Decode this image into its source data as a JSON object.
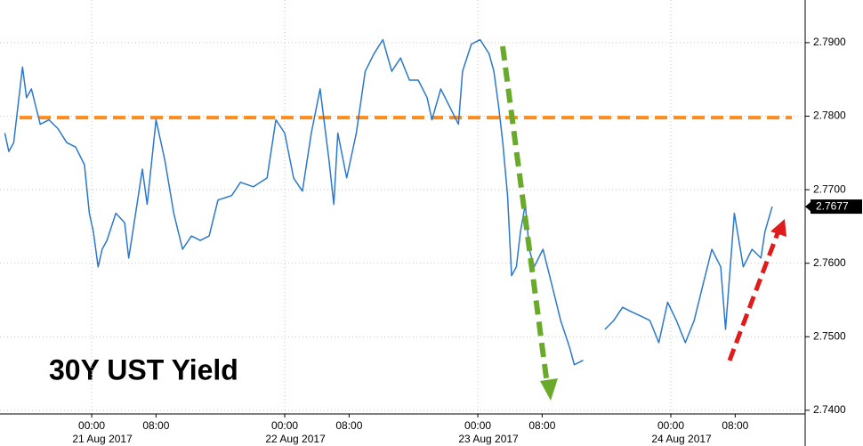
{
  "chart_data": {
    "type": "line",
    "title": "30Y UST Yield",
    "x": [
      -10.8,
      -10.3,
      -9.7,
      -8.6,
      -8.1,
      -7.5,
      -6.4,
      -5.3,
      -4.2,
      -3.1,
      -2.0,
      -0.9,
      -0.3,
      0.2,
      0.8,
      1.3,
      1.9,
      3.0,
      4.1,
      4.6,
      5.8,
      6.3,
      6.9,
      8.0,
      9.1,
      10.2,
      11.3,
      12.4,
      13.5,
      14.6,
      15.7,
      17.4,
      18.5,
      20.1,
      21.8,
      22.3,
      22.9,
      24.0,
      25.1,
      26.2,
      27.3,
      28.4,
      29.5,
      30.1,
      30.6,
      31.7,
      32.9,
      34.0,
      35.1,
      36.2,
      37.3,
      38.4,
      39.5,
      40.6,
      41.7,
      42.3,
      43.4,
      44.5,
      45.6,
      46.1,
      47.2,
      48.3,
      49.4,
      50.0,
      50.6,
      51.1,
      51.7,
      52.2,
      52.8,
      53.3,
      53.9,
      54.4,
      55.0,
      56.1,
      57.2,
      58.3,
      59.4,
      60.0,
      61.1,
      62.3,
      63.8,
      64.9,
      66.0,
      67.1,
      68.3,
      69.4,
      70.5,
      71.6,
      72.7,
      73.8,
      74.9,
      76.0,
      77.1,
      78.2,
      78.8,
      79.9,
      81.0,
      82.1,
      83.2,
      83.7,
      84.6
    ],
    "series": [
      {
        "name": "30Y UST Yield",
        "color": "#2a78d0",
        "values": [
          2.7777,
          2.7752,
          2.7764,
          2.7867,
          2.7825,
          2.7837,
          2.7789,
          2.7795,
          2.7783,
          2.7764,
          2.7758,
          2.7734,
          2.7668,
          2.7643,
          2.7595,
          2.7619,
          2.7631,
          2.7668,
          2.7655,
          2.7607,
          2.7692,
          2.7728,
          2.768,
          2.7795,
          2.774,
          2.7668,
          2.7619,
          2.7637,
          2.7631,
          2.7637,
          2.7686,
          2.7692,
          2.771,
          2.7704,
          2.7716,
          2.7752,
          2.7795,
          2.7777,
          2.7716,
          2.7698,
          2.7777,
          2.7837,
          2.774,
          2.768,
          2.7777,
          2.7716,
          2.7777,
          2.7861,
          2.7885,
          2.7904,
          2.7861,
          2.7879,
          2.7849,
          2.7849,
          2.7825,
          2.7795,
          2.7837,
          2.7813,
          2.7789,
          2.7861,
          2.7898,
          2.7904,
          2.7885,
          2.7861,
          2.7813,
          2.7764,
          2.7692,
          2.7583,
          2.7595,
          2.7643,
          2.768,
          2.7619,
          2.7595,
          2.7619,
          2.7571,
          2.7522,
          2.7486,
          2.7462,
          2.7468,
          null,
          2.751,
          2.7522,
          2.754,
          2.7534,
          2.7528,
          2.7522,
          2.7492,
          2.7547,
          2.7522,
          2.7492,
          2.7522,
          2.7571,
          2.7619,
          2.7595,
          2.751,
          2.7668,
          2.7595,
          2.7619,
          2.7607,
          2.7643,
          2.7677
        ]
      }
    ],
    "xlim": [
      -11.4,
      88.7
    ],
    "xticks": [
      {
        "value": 0,
        "label": "00:00"
      },
      {
        "value": 8,
        "label": "08:00"
      },
      {
        "value": 24,
        "label": "00:00"
      },
      {
        "value": 32,
        "label": "08:00"
      },
      {
        "value": 48,
        "label": "00:00"
      },
      {
        "value": 56,
        "label": "08:00"
      },
      {
        "value": 72,
        "label": "00:00"
      },
      {
        "value": 80,
        "label": "08:00"
      }
    ],
    "date_labels": [
      {
        "value": 0,
        "label": "21 Aug 2017"
      },
      {
        "value": 24,
        "label": "22 Aug 2017"
      },
      {
        "value": 48,
        "label": "23 Aug 2017"
      },
      {
        "value": 72,
        "label": "24 Aug 2017"
      }
    ],
    "ylim": [
      2.7395,
      2.7958
    ],
    "yticks": [
      {
        "value": 2.74,
        "label": "2.7400"
      },
      {
        "value": 2.75,
        "label": "2.7500"
      },
      {
        "value": 2.76,
        "label": "2.7600"
      },
      {
        "value": 2.77,
        "label": "2.7700"
      },
      {
        "value": 2.78,
        "label": "2.7800"
      },
      {
        "value": 2.79,
        "label": "2.7900"
      }
    ],
    "reference_line": {
      "value": 2.7798,
      "color": "#ff8c1a"
    },
    "grid": true
  }
}
